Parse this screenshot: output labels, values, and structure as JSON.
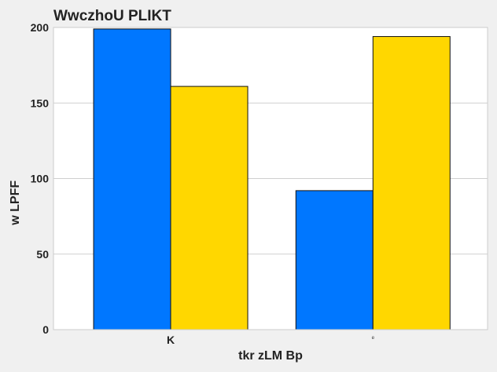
{
  "chart_data": {
    "type": "bar",
    "title": "WwczhoU PLIKT",
    "xlabel": "tkr zLM Bp",
    "ylabel": "w LPFF",
    "categories": [
      "K",
      "ᵉ"
    ],
    "series": [
      {
        "values": [
          199,
          92
        ],
        "color": "#0077ff"
      },
      {
        "values": [
          161,
          194
        ],
        "color": "#ffd700"
      }
    ],
    "ylim": [
      0,
      200
    ],
    "yticks": [
      0,
      50,
      100,
      150,
      200
    ],
    "grid": true,
    "background": "#ffffff",
    "figure_background": "#f0f0f0"
  }
}
